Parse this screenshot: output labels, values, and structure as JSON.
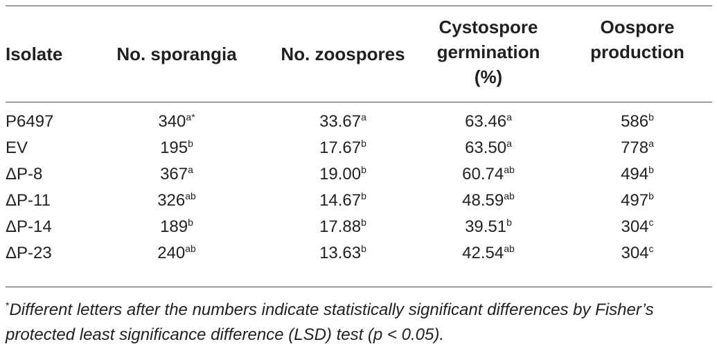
{
  "table": {
    "headers": [
      [
        "Isolate"
      ],
      [
        "No. sporangia"
      ],
      [
        "No. zoospores"
      ],
      [
        "Cystospore",
        "germination",
        "(%)"
      ],
      [
        "Oospore",
        "production"
      ]
    ],
    "rows": [
      {
        "isolate": "P6497",
        "sporangia": {
          "v": "340",
          "s": "a*"
        },
        "zoospores": {
          "v": "33.67",
          "s": "a"
        },
        "germination": {
          "v": "63.46",
          "s": "a"
        },
        "oospore": {
          "v": "586",
          "s": "b"
        }
      },
      {
        "isolate": "EV",
        "sporangia": {
          "v": "195",
          "s": "b"
        },
        "zoospores": {
          "v": "17.67",
          "s": "b"
        },
        "germination": {
          "v": "63.50",
          "s": "a"
        },
        "oospore": {
          "v": "778",
          "s": "a"
        }
      },
      {
        "isolate": "ΔP-8",
        "sporangia": {
          "v": "367",
          "s": "a"
        },
        "zoospores": {
          "v": "19.00",
          "s": "b"
        },
        "germination": {
          "v": "60.74",
          "s": "ab"
        },
        "oospore": {
          "v": "494",
          "s": "b"
        }
      },
      {
        "isolate": "ΔP-11",
        "sporangia": {
          "v": "326",
          "s": "ab"
        },
        "zoospores": {
          "v": "14.67",
          "s": "b"
        },
        "germination": {
          "v": "48.59",
          "s": "ab"
        },
        "oospore": {
          "v": "497",
          "s": "b"
        }
      },
      {
        "isolate": "ΔP-14",
        "sporangia": {
          "v": "189",
          "s": "b"
        },
        "zoospores": {
          "v": "17.88",
          "s": "b"
        },
        "germination": {
          "v": "39.51",
          "s": "b"
        },
        "oospore": {
          "v": "304",
          "s": "c"
        }
      },
      {
        "isolate": "ΔP-23",
        "sporangia": {
          "v": "240",
          "s": "ab"
        },
        "zoospores": {
          "v": "13.63",
          "s": "b"
        },
        "germination": {
          "v": "42.54",
          "s": "ab"
        },
        "oospore": {
          "v": "304",
          "s": "c"
        }
      }
    ]
  },
  "footnote": {
    "marker": "*",
    "line1": "Different letters after the numbers indicate statistically significant differences by Fisher’s",
    "line2": "protected least significance difference (LSD) test (p < 0.05)."
  }
}
